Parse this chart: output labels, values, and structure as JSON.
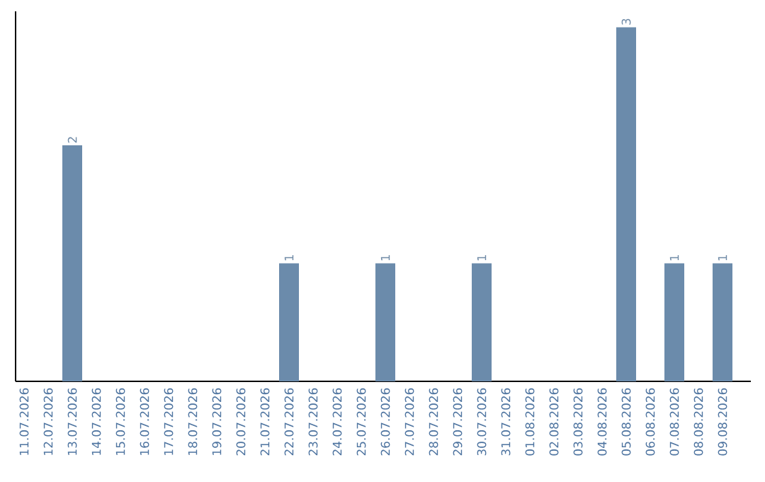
{
  "chart_data": {
    "type": "bar",
    "categories": [
      "11.07.2026",
      "12.07.2026",
      "13.07.2026",
      "14.07.2026",
      "15.07.2026",
      "16.07.2026",
      "17.07.2026",
      "18.07.2026",
      "19.07.2026",
      "20.07.2026",
      "21.07.2026",
      "22.07.2026",
      "23.07.2026",
      "24.07.2026",
      "25.07.2026",
      "26.07.2026",
      "27.07.2026",
      "28.07.2026",
      "29.07.2026",
      "30.07.2026",
      "31.07.2026",
      "01.08.2026",
      "02.08.2026",
      "03.08.2026",
      "04.08.2026",
      "05.08.2026",
      "06.08.2026",
      "07.08.2026",
      "08.08.2026",
      "09.08.2026"
    ],
    "values": [
      0,
      0,
      2,
      0,
      0,
      0,
      0,
      0,
      0,
      0,
      0,
      1,
      0,
      0,
      0,
      1,
      0,
      0,
      0,
      1,
      0,
      0,
      0,
      0,
      0,
      3,
      0,
      1,
      0,
      1
    ],
    "value_labels": [
      null,
      null,
      "2",
      null,
      null,
      null,
      null,
      null,
      null,
      null,
      null,
      "1",
      null,
      null,
      null,
      "1",
      null,
      null,
      null,
      "1",
      null,
      null,
      null,
      null,
      null,
      "3",
      null,
      "1",
      null,
      "1"
    ],
    "color": "#6b8bab",
    "tick_labels": "x"
  }
}
